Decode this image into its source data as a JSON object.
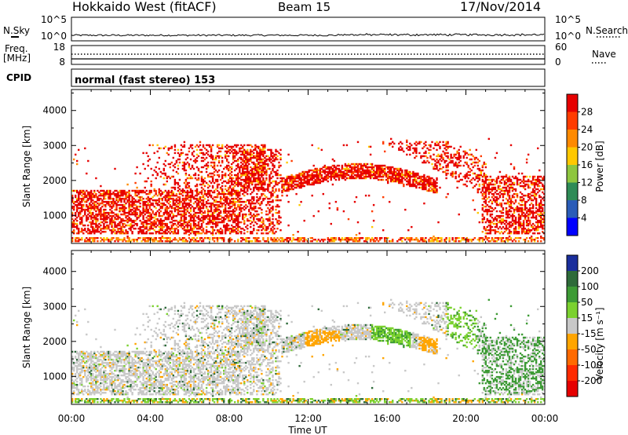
{
  "header": {
    "station": "Hokkaido West (fitACF)",
    "beam": "Beam 15",
    "date": "17/Nov/2014"
  },
  "strips": {
    "nsky_label": "N.Sky",
    "nsearch_label": "N.Search",
    "noise_ticks": [
      "10^5",
      "10^0"
    ],
    "freq_label": "Freq.",
    "freq_unit": "[MHz]",
    "freq_ticks": [
      "18",
      "8"
    ],
    "nave_label": "Nave",
    "nave_ticks": [
      "60",
      "0"
    ],
    "cpid_label": "CPID",
    "cpid_text": "normal (fast stereo) 153"
  },
  "chart_data": [
    {
      "type": "heatmap",
      "panel": "power",
      "ylabel": "Slant Range [km]",
      "xlabel": "Time UT",
      "x_ticks": [
        "00:00",
        "04:00",
        "08:00",
        "12:00",
        "16:00",
        "20:00",
        "00:00"
      ],
      "y_ticks": [
        1000,
        2000,
        3000,
        4000
      ],
      "ylim": [
        200,
        4600
      ],
      "xlim_hours": [
        0,
        24
      ],
      "colorbar": {
        "label": "Power [dB]",
        "ticks": [
          "28",
          "24",
          "20",
          "16",
          "12",
          "8",
          "4"
        ],
        "colors": [
          "#e60000",
          "#ff3c00",
          "#ff8a00",
          "#ffc800",
          "#8ec63f",
          "#2e8b57",
          "#2a5cb8",
          "#0000ff"
        ]
      }
    },
    {
      "type": "heatmap",
      "panel": "velocity",
      "ylabel": "Slant Range [km]",
      "xlabel": "Time UT",
      "x_ticks": [
        "00:00",
        "04:00",
        "08:00",
        "12:00",
        "16:00",
        "20:00",
        "00:00"
      ],
      "y_ticks": [
        1000,
        2000,
        3000,
        4000
      ],
      "ylim": [
        200,
        4600
      ],
      "xlim_hours": [
        0,
        24
      ],
      "colorbar": {
        "label": "Velocity [m s⁻¹]",
        "ticks": [
          "200",
          "100",
          "50",
          "15",
          "-15",
          "-50",
          "-100",
          "-200"
        ],
        "colors": [
          "#1a2e9c",
          "#2e6b3a",
          "#3d9b35",
          "#7bd12f",
          "#c8c8c8",
          "#ffa500",
          "#ff6a00",
          "#ff2a00",
          "#e60000"
        ]
      }
    }
  ],
  "x_axis_label": "Time UT"
}
